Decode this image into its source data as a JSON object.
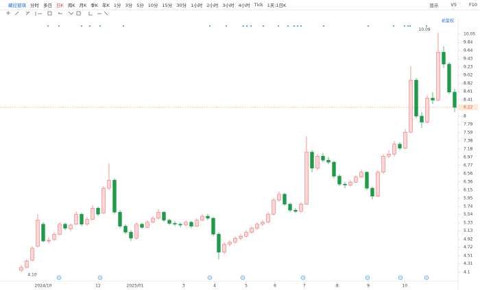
{
  "toolbar": {
    "symbol": "藏控玻璃",
    "periods": [
      "分时",
      "多日",
      "日K",
      "周K",
      "月K",
      "季K",
      "年K",
      "1分",
      "3分",
      "5分",
      "10分",
      "15分",
      "30分",
      "1小时",
      "2小时",
      "3小时",
      "4小时",
      "Tick",
      "1天:1日K"
    ],
    "active": 2,
    "right": [
      "显示",
      "V5",
      "F10"
    ]
  },
  "chart_data": {
    "type": "candlestick",
    "adjust": "前复权",
    "up_color": "#ef6f6f",
    "up_fill": "#fbd6d6",
    "down_color": "#1f9a48",
    "ylim": [
      3.98,
      10.39
    ],
    "yticks": [
      4.1,
      4.31,
      4.51,
      4.72,
      4.92,
      5.13,
      5.33,
      5.54,
      5.74,
      5.95,
      6.15,
      6.36,
      6.56,
      6.77,
      6.97,
      7.18,
      7.38,
      7.59,
      7.79,
      8.0,
      8.41,
      8.61,
      8.82,
      9.02,
      9.23,
      9.43,
      9.64,
      9.84,
      10.05
    ],
    "last_price": 8.22,
    "xlim": [
      -0.5,
      79.5
    ],
    "xticks": [
      {
        "value": 4,
        "label": "2024/10"
      },
      {
        "value": 14,
        "label": "12"
      },
      {
        "value": 20.75,
        "label": "2025/01"
      },
      {
        "value": 29.6,
        "label": "3"
      },
      {
        "value": 35.25,
        "label": "4"
      },
      {
        "value": 41,
        "label": "5"
      },
      {
        "value": 46.25,
        "label": "6"
      },
      {
        "value": 51.6,
        "label": "7"
      },
      {
        "value": 57.6,
        "label": "8"
      },
      {
        "value": 63.25,
        "label": "9"
      },
      {
        "value": 69.9,
        "label": "10"
      }
    ],
    "low_label": "4.10",
    "high_label": "10.09",
    "ohlc": [
      [
        4.15,
        4.28,
        4.1,
        4.22
      ],
      [
        4.22,
        4.42,
        4.2,
        4.38
      ],
      [
        4.4,
        4.75,
        4.38,
        4.7
      ],
      [
        4.75,
        5.55,
        4.72,
        5.4
      ],
      [
        5.3,
        5.35,
        4.85,
        4.88
      ],
      [
        4.88,
        4.98,
        4.82,
        4.9
      ],
      [
        4.92,
        5.1,
        4.88,
        5.05
      ],
      [
        5.05,
        5.35,
        5.02,
        5.3
      ],
      [
        5.3,
        5.34,
        5.15,
        5.2
      ],
      [
        5.18,
        5.32,
        5.12,
        5.28
      ],
      [
        5.3,
        5.62,
        5.28,
        5.55
      ],
      [
        5.55,
        5.58,
        5.25,
        5.3
      ],
      [
        5.3,
        5.48,
        5.26,
        5.42
      ],
      [
        5.42,
        5.78,
        5.4,
        5.7
      ],
      [
        5.7,
        5.74,
        5.5,
        5.55
      ],
      [
        5.58,
        6.25,
        5.55,
        6.2
      ],
      [
        6.2,
        6.82,
        6.15,
        6.4
      ],
      [
        6.4,
        6.45,
        5.55,
        5.6
      ],
      [
        5.6,
        5.65,
        5.2,
        5.25
      ],
      [
        5.25,
        5.3,
        5.05,
        5.1
      ],
      [
        5.1,
        5.15,
        4.88,
        4.95
      ],
      [
        4.95,
        5.35,
        4.92,
        5.3
      ],
      [
        5.3,
        5.33,
        5.18,
        5.22
      ],
      [
        5.22,
        5.4,
        5.2,
        5.35
      ],
      [
        5.35,
        5.5,
        5.32,
        5.45
      ],
      [
        5.45,
        5.68,
        5.42,
        5.6
      ],
      [
        5.6,
        5.62,
        5.36,
        5.4
      ],
      [
        5.4,
        5.44,
        5.28,
        5.32
      ],
      [
        5.32,
        5.38,
        5.25,
        5.3
      ],
      [
        5.3,
        5.34,
        5.22,
        5.28
      ],
      [
        5.28,
        5.4,
        5.25,
        5.35
      ],
      [
        5.35,
        5.38,
        5.2,
        5.25
      ],
      [
        5.25,
        5.45,
        5.22,
        5.4
      ],
      [
        5.4,
        5.55,
        5.38,
        5.5
      ],
      [
        5.5,
        5.56,
        5.4,
        5.45
      ],
      [
        5.45,
        5.48,
        5.0,
        5.05
      ],
      [
        5.05,
        5.1,
        4.42,
        4.6
      ],
      [
        4.6,
        4.85,
        4.55,
        4.8
      ],
      [
        4.8,
        4.9,
        4.75,
        4.85
      ],
      [
        4.85,
        5.0,
        4.82,
        4.95
      ],
      [
        4.95,
        5.05,
        4.9,
        5.0
      ],
      [
        5.0,
        5.15,
        4.97,
        5.1
      ],
      [
        5.1,
        5.25,
        5.06,
        5.2
      ],
      [
        5.2,
        5.35,
        5.16,
        5.3
      ],
      [
        5.3,
        5.4,
        5.26,
        5.35
      ],
      [
        5.35,
        5.6,
        5.32,
        5.55
      ],
      [
        5.55,
        5.95,
        5.52,
        5.9
      ],
      [
        5.9,
        6.12,
        5.86,
        6.05
      ],
      [
        6.05,
        6.08,
        5.76,
        5.8
      ],
      [
        5.8,
        5.84,
        5.6,
        5.65
      ],
      [
        5.65,
        5.7,
        5.58,
        5.62
      ],
      [
        5.62,
        5.85,
        5.6,
        5.8
      ],
      [
        5.8,
        7.5,
        5.78,
        7.1
      ],
      [
        7.1,
        7.15,
        6.6,
        6.7
      ],
      [
        6.7,
        7.05,
        6.65,
        7.0
      ],
      [
        7.0,
        7.08,
        6.85,
        6.9
      ],
      [
        6.9,
        6.98,
        6.8,
        6.85
      ],
      [
        6.85,
        6.88,
        6.45,
        6.5
      ],
      [
        6.5,
        6.55,
        6.25,
        6.3
      ],
      [
        6.3,
        6.36,
        6.2,
        6.28
      ],
      [
        6.28,
        6.4,
        6.24,
        6.35
      ],
      [
        6.35,
        6.52,
        6.32,
        6.48
      ],
      [
        6.48,
        6.66,
        6.45,
        6.6
      ],
      [
        6.6,
        6.62,
        6.15,
        6.2
      ],
      [
        6.2,
        6.24,
        5.92,
        6.0
      ],
      [
        6.0,
        6.65,
        5.98,
        6.6
      ],
      [
        6.6,
        7.05,
        6.55,
        7.0
      ],
      [
        7.0,
        7.15,
        6.95,
        7.05
      ],
      [
        7.05,
        7.38,
        7.0,
        7.3
      ],
      [
        7.3,
        7.35,
        7.15,
        7.2
      ],
      [
        7.2,
        7.68,
        7.18,
        7.6
      ],
      [
        7.6,
        9.25,
        7.58,
        8.9
      ],
      [
        8.9,
        8.95,
        7.95,
        8.0
      ],
      [
        8.0,
        8.1,
        7.7,
        7.85
      ],
      [
        7.85,
        8.52,
        7.82,
        8.45
      ],
      [
        8.45,
        8.6,
        8.3,
        8.4
      ],
      [
        8.4,
        10.09,
        8.38,
        9.6
      ],
      [
        9.6,
        9.75,
        9.2,
        9.3
      ],
      [
        9.3,
        9.35,
        8.55,
        8.6
      ],
      [
        8.6,
        8.68,
        8.1,
        8.22
      ]
    ]
  }
}
